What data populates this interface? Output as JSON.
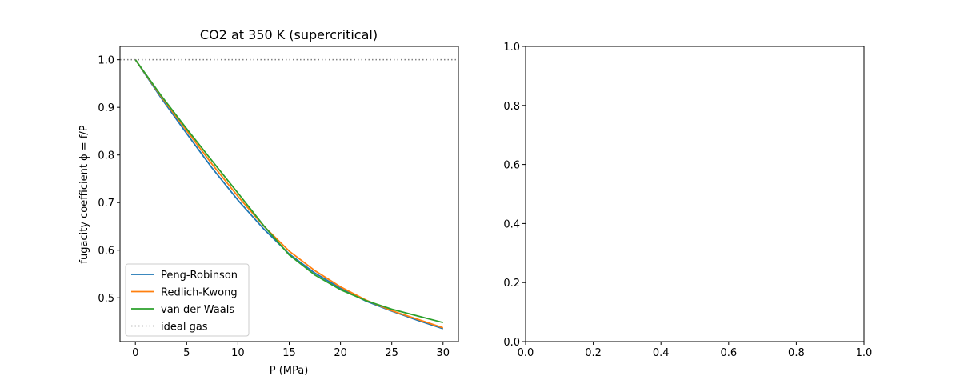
{
  "chart_data": [
    {
      "type": "line",
      "title": "CO2 at 350 K (supercritical)",
      "xlabel": "P (MPa)",
      "ylabel": "fugacity coefficient ϕ = f/P",
      "xlim": [
        -1.5,
        31.5
      ],
      "ylim": [
        0.408,
        1.028
      ],
      "xticks": [
        0,
        5,
        10,
        15,
        20,
        25,
        30
      ],
      "xtick_labels": [
        "0",
        "5",
        "10",
        "15",
        "20",
        "25",
        "30"
      ],
      "yticks": [
        0.5,
        0.6,
        0.7,
        0.8,
        0.9,
        1.0
      ],
      "ytick_labels": [
        "0.5",
        "0.6",
        "0.7",
        "0.8",
        "0.9",
        "1.0"
      ],
      "grid": false,
      "legend_position": "lower-left",
      "series": [
        {
          "name": "Peng-Robinson",
          "color": "#1f77b4",
          "style": "solid",
          "x": [
            0,
            2.5,
            5,
            7.5,
            10,
            12.5,
            15,
            17.5,
            20,
            22.5,
            25,
            27.5,
            30
          ],
          "y": [
            1.0,
            0.92,
            0.845,
            0.772,
            0.705,
            0.645,
            0.592,
            0.552,
            0.52,
            0.493,
            0.472,
            0.453,
            0.435
          ]
        },
        {
          "name": "Redlich-Kwong",
          "color": "#ff7f0e",
          "style": "solid",
          "x": [
            0,
            2.5,
            5,
            7.5,
            10,
            12.5,
            15,
            17.5,
            20,
            22.5,
            25,
            27.5,
            30
          ],
          "y": [
            1.0,
            0.923,
            0.851,
            0.78,
            0.713,
            0.651,
            0.598,
            0.557,
            0.523,
            0.495,
            0.473,
            0.455,
            0.437
          ]
        },
        {
          "name": "van der Waals",
          "color": "#2ca02c",
          "style": "solid",
          "x": [
            0,
            2.5,
            5,
            7.5,
            10,
            12.5,
            15,
            17.5,
            20,
            22.5,
            25,
            27.5,
            30
          ],
          "y": [
            1.0,
            0.925,
            0.855,
            0.787,
            0.72,
            0.652,
            0.59,
            0.548,
            0.517,
            0.494,
            0.476,
            0.462,
            0.448
          ]
        },
        {
          "name": "ideal gas",
          "color": "#808080",
          "style": "dotted",
          "x": [
            -1.5,
            31.5
          ],
          "y": [
            1.0,
            1.0
          ]
        }
      ]
    },
    {
      "type": "line",
      "title": "",
      "xlabel": "",
      "ylabel": "",
      "xlim": [
        0.0,
        1.0
      ],
      "ylim": [
        0.0,
        1.0
      ],
      "xticks": [
        0.0,
        0.2,
        0.4,
        0.6,
        0.8,
        1.0
      ],
      "xtick_labels": [
        "0.0",
        "0.2",
        "0.4",
        "0.6",
        "0.8",
        "1.0"
      ],
      "yticks": [
        0.0,
        0.2,
        0.4,
        0.6,
        0.8,
        1.0
      ],
      "ytick_labels": [
        "0.0",
        "0.2",
        "0.4",
        "0.6",
        "0.8",
        "1.0"
      ],
      "grid": false,
      "series": []
    }
  ]
}
